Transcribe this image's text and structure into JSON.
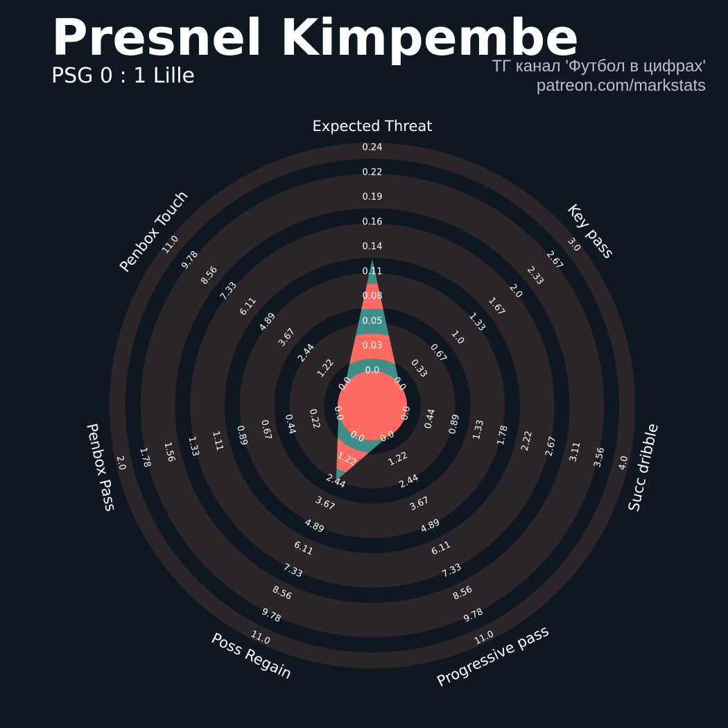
{
  "header": {
    "title": "Presnel Kimpembe",
    "subtitle": "PSG 0 : 1 Lille",
    "credit_line1": "ТГ канал 'Футбол в цифрах'",
    "credit_line2": "patreon.com/markstats"
  },
  "colors": {
    "background": "#0f1820",
    "ring_band": "#2b2429",
    "player_fill": "#ff6b63",
    "alt_fill": "#3d8f88",
    "text": "#ffffff",
    "credit": "#b9bfc6"
  },
  "chart_data": {
    "type": "radar",
    "title": "Presnel Kimpembe",
    "subtitle": "PSG 0 : 1 Lille",
    "grid": true,
    "legend": "none",
    "axes": [
      {
        "name": "Expected Threat",
        "min": 0.0,
        "max": 0.24,
        "tick_labels": [
          "0.0",
          "0.03",
          "0.05",
          "0.08",
          "0.11",
          "0.14",
          "0.16",
          "0.19",
          "0.22",
          "0.24"
        ]
      },
      {
        "name": "Key pass",
        "min": 0.0,
        "max": 3.0,
        "tick_labels": [
          "0.0",
          "0.33",
          "0.67",
          "1.0",
          "1.33",
          "1.67",
          "2.0",
          "2.33",
          "2.67",
          "3.0"
        ]
      },
      {
        "name": "Succ dribble",
        "min": 0.0,
        "max": 4.0,
        "tick_labels": [
          "0.0",
          "0.44",
          "0.89",
          "1.33",
          "1.78",
          "2.22",
          "2.67",
          "3.11",
          "3.56",
          "4.0"
        ]
      },
      {
        "name": "Progressive pass",
        "min": 0.0,
        "max": 11.0,
        "tick_labels": [
          "0.0",
          "1.22",
          "2.44",
          "3.67",
          "4.89",
          "6.11",
          "7.33",
          "8.56",
          "9.78",
          "11.0"
        ]
      },
      {
        "name": "Poss Regain",
        "min": 0.0,
        "max": 11.0,
        "tick_labels": [
          "0.0",
          "1.22",
          "2.44",
          "3.67",
          "4.89",
          "6.11",
          "7.33",
          "8.56",
          "9.78",
          "11.0"
        ]
      },
      {
        "name": "Penbox Pass",
        "min": 0.0,
        "max": 2.0,
        "tick_labels": [
          "0.0",
          "0.22",
          "0.44",
          "0.67",
          "0.89",
          "1.11",
          "1.33",
          "1.56",
          "1.78",
          "2.0"
        ]
      },
      {
        "name": "Penbox Touch",
        "min": 0.0,
        "max": 11.0,
        "tick_labels": [
          "0.0",
          "1.22",
          "2.44",
          "3.67",
          "4.89",
          "6.11",
          "7.33",
          "8.56",
          "9.78",
          "11.0"
        ]
      }
    ],
    "series": [
      {
        "values": [
          0.12,
          0.0,
          0.0,
          0.0,
          2.4,
          0.0,
          0.0
        ]
      }
    ]
  }
}
